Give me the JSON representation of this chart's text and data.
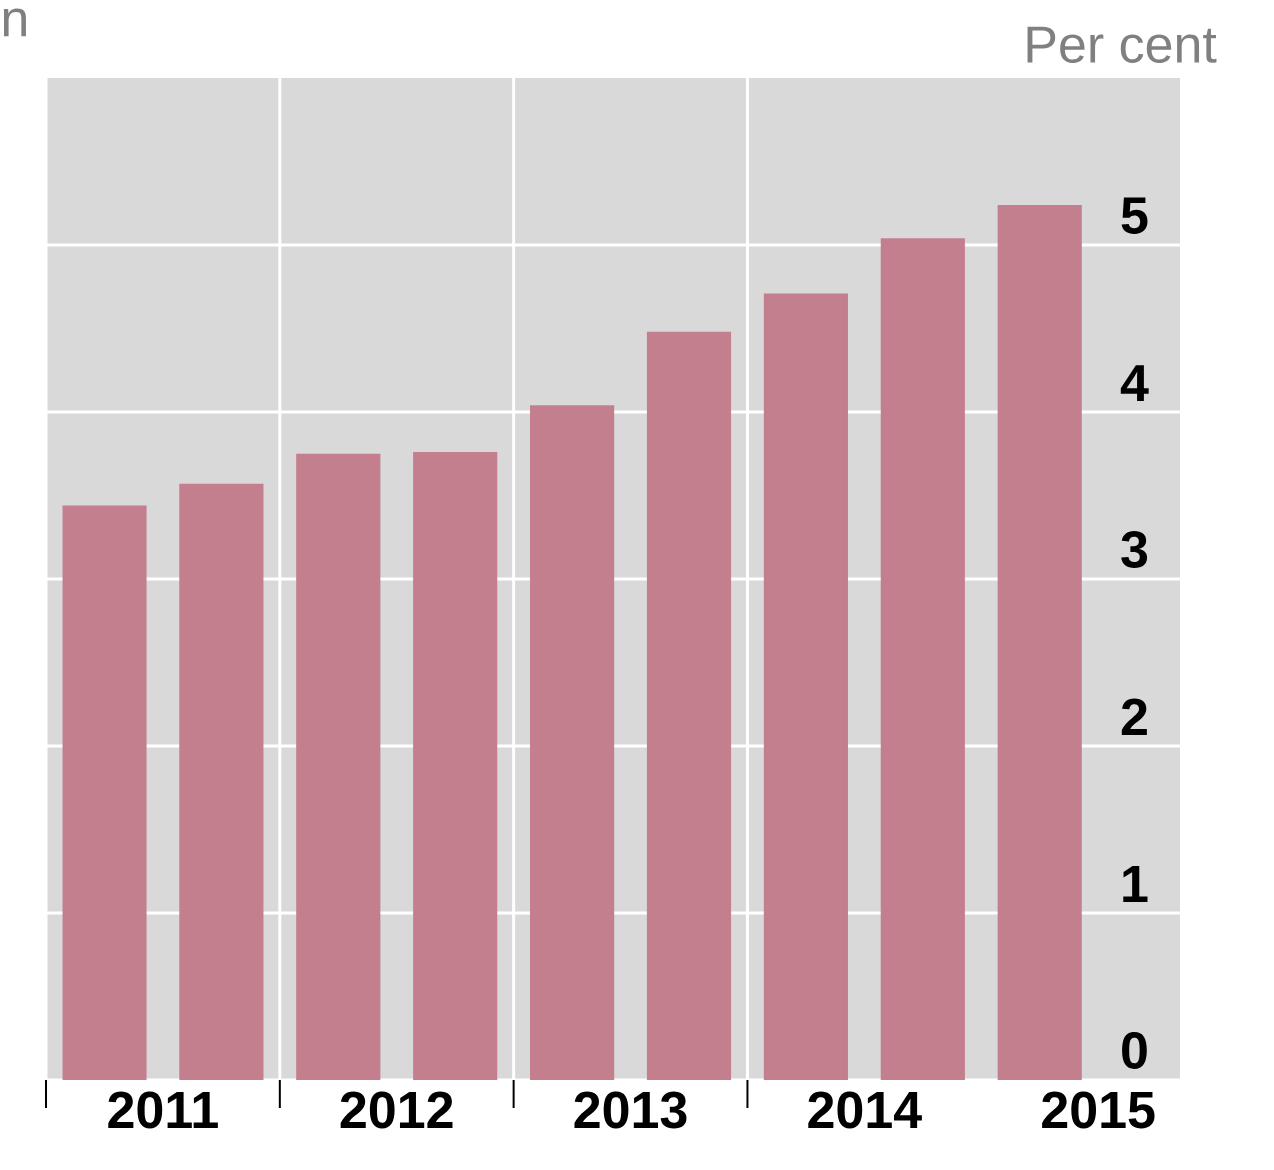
{
  "chart_data": {
    "type": "bar",
    "ylabel": "Per cent",
    "annotations": [
      "n"
    ],
    "categories": [
      "2011",
      null,
      "2012",
      null,
      "2013",
      null,
      "2014",
      null,
      "2015"
    ],
    "values": [
      3.44,
      3.57,
      3.75,
      3.76,
      4.04,
      4.48,
      4.71,
      5.04,
      5.24
    ],
    "color": "#c47f8f",
    "ylim": [
      0,
      6
    ],
    "yticks": [
      0,
      1,
      2,
      3,
      4,
      5
    ],
    "grid": true
  }
}
